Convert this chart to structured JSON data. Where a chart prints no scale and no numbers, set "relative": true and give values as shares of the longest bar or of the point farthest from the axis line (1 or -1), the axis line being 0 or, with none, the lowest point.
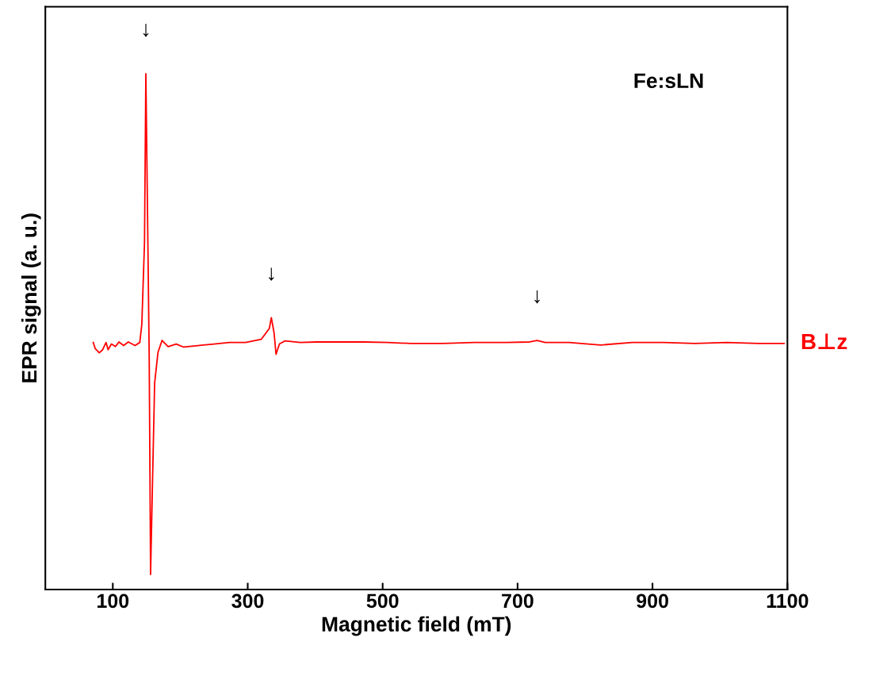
{
  "chart_data": {
    "type": "line",
    "relative": true,
    "xlabel": "Magnetic field (mT)",
    "ylabel": "EPR signal (a. u.)",
    "xlim": [
      0,
      1100
    ],
    "xticks": [
      100,
      300,
      500,
      700,
      900,
      1100
    ],
    "grid": false,
    "legend": false,
    "marker": "none",
    "line_style": "solid",
    "x": [
      71,
      74,
      80,
      85,
      90,
      93,
      98,
      104,
      109,
      116,
      123,
      133,
      140,
      143,
      147,
      149,
      152,
      154,
      156,
      159,
      162,
      167,
      173,
      182,
      194,
      205,
      226,
      250,
      273,
      297,
      320,
      332,
      335,
      339,
      342,
      347,
      355,
      378,
      402,
      437,
      472,
      507,
      542,
      589,
      636,
      683,
      718,
      729,
      741,
      776,
      823,
      870,
      916,
      963,
      1010,
      1057,
      1095
    ],
    "series": [
      {
        "name": "B⊥z",
        "color": "#ff0000",
        "values": [
          0.479,
          0.467,
          0.459,
          0.465,
          0.479,
          0.465,
          0.476,
          0.471,
          0.48,
          0.473,
          0.48,
          0.473,
          0.479,
          0.514,
          0.673,
          1.0,
          0.673,
          0.445,
          0.029,
          0.217,
          0.4,
          0.46,
          0.483,
          0.471,
          0.476,
          0.47,
          0.473,
          0.476,
          0.479,
          0.479,
          0.485,
          0.506,
          0.527,
          0.498,
          0.456,
          0.476,
          0.482,
          0.479,
          0.48,
          0.48,
          0.48,
          0.479,
          0.477,
          0.477,
          0.479,
          0.479,
          0.48,
          0.483,
          0.479,
          0.479,
          0.474,
          0.479,
          0.479,
          0.477,
          0.479,
          0.477,
          0.477
        ]
      }
    ],
    "annotations": [
      {
        "text": "↓",
        "x": 149,
        "y": 1.0
      },
      {
        "text": "↓",
        "x": 335,
        "y": 0.527
      },
      {
        "text": "↓",
        "x": 729,
        "y": 0.483
      },
      "Fe:sLN"
    ]
  }
}
